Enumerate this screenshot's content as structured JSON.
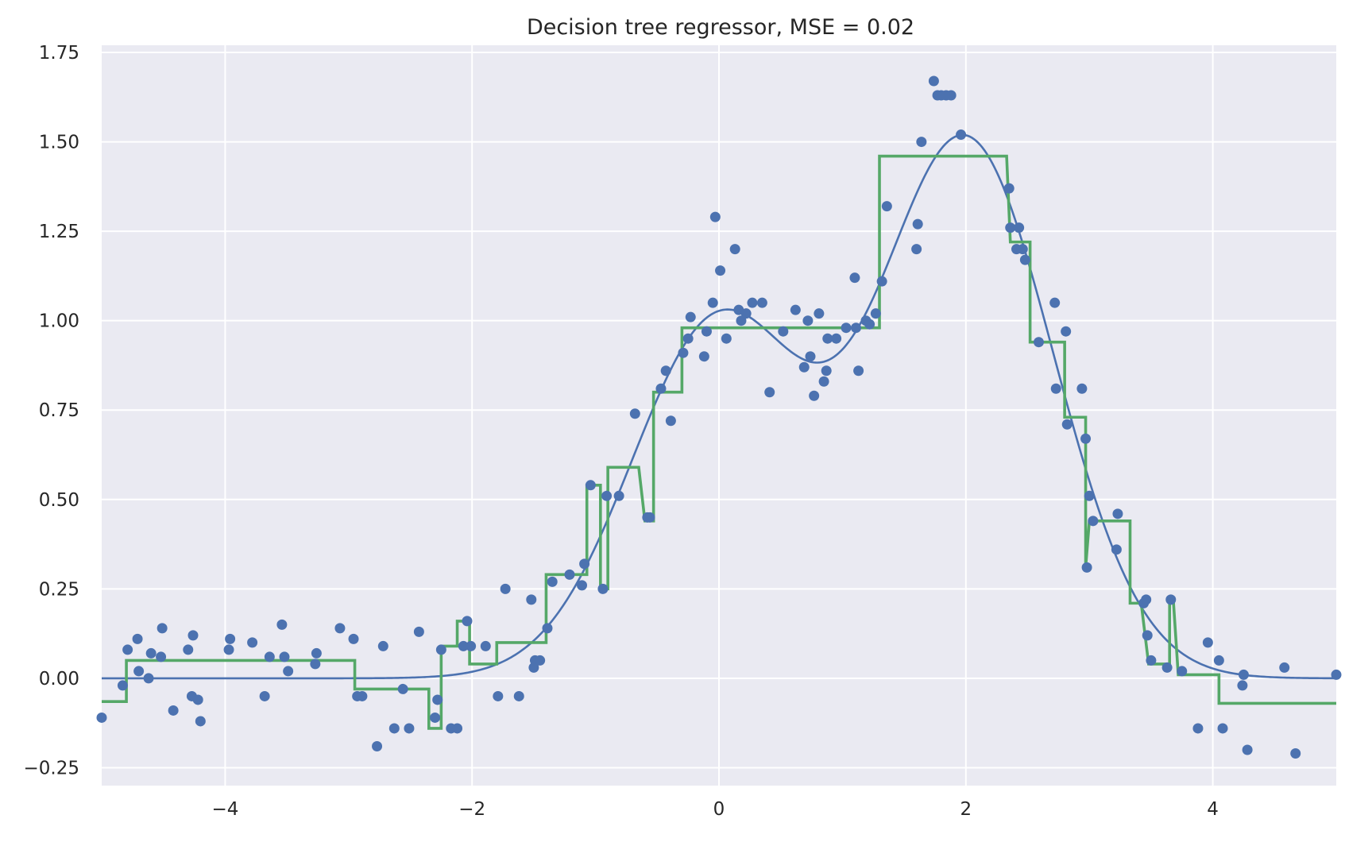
{
  "chart_data": {
    "type": "scatter",
    "title": "Decision tree regressor, MSE = 0.02",
    "xlabel": "",
    "ylabel": "",
    "xlim": [
      -5,
      5
    ],
    "ylim": [
      -0.3,
      1.77
    ],
    "grid": true,
    "background_color": "#eaeaf2",
    "grid_color": "#ffffff",
    "x_ticks": [
      -4,
      -2,
      0,
      2,
      4
    ],
    "x_tick_labels": [
      "−4",
      "−2",
      "0",
      "2",
      "4"
    ],
    "y_ticks": [
      -0.25,
      0,
      0.25,
      0.5,
      0.75,
      1.0,
      1.25,
      1.5,
      1.75
    ],
    "y_tick_labels": [
      "−0.25",
      "0.00",
      "0.25",
      "0.50",
      "0.75",
      "1.00",
      "1.25",
      "1.50",
      "1.75"
    ],
    "series": [
      {
        "kind": "scatter",
        "color": "#4c72b0",
        "points": [
          [
            -5.0,
            -0.11
          ],
          [
            -4.83,
            -0.02
          ],
          [
            -4.79,
            0.08
          ],
          [
            -4.71,
            0.11
          ],
          [
            -4.7,
            0.02
          ],
          [
            -4.62,
            0.0
          ],
          [
            -4.6,
            0.07
          ],
          [
            -4.52,
            0.06
          ],
          [
            -4.51,
            0.14
          ],
          [
            -4.42,
            -0.09
          ],
          [
            -4.3,
            0.08
          ],
          [
            -4.27,
            -0.05
          ],
          [
            -4.26,
            0.12
          ],
          [
            -4.22,
            -0.06
          ],
          [
            -4.2,
            -0.12
          ],
          [
            -3.97,
            0.08
          ],
          [
            -3.96,
            0.11
          ],
          [
            -3.78,
            0.1
          ],
          [
            -3.68,
            -0.05
          ],
          [
            -3.64,
            0.06
          ],
          [
            -3.54,
            0.15
          ],
          [
            -3.52,
            0.06
          ],
          [
            -3.49,
            0.02
          ],
          [
            -3.27,
            0.04
          ],
          [
            -3.26,
            0.07
          ],
          [
            -3.07,
            0.14
          ],
          [
            -2.96,
            0.11
          ],
          [
            -2.93,
            -0.05
          ],
          [
            -2.89,
            -0.05
          ],
          [
            -2.77,
            -0.19
          ],
          [
            -2.72,
            0.09
          ],
          [
            -2.63,
            -0.14
          ],
          [
            -2.56,
            -0.03
          ],
          [
            -2.51,
            -0.14
          ],
          [
            -2.43,
            0.13
          ],
          [
            -2.3,
            -0.11
          ],
          [
            -2.28,
            -0.06
          ],
          [
            -2.25,
            0.08
          ],
          [
            -2.17,
            -0.14
          ],
          [
            -2.12,
            -0.14
          ],
          [
            -2.07,
            0.09
          ],
          [
            -2.04,
            0.16
          ],
          [
            -2.01,
            0.09
          ],
          [
            -1.89,
            0.09
          ],
          [
            -1.79,
            -0.05
          ],
          [
            -1.73,
            0.25
          ],
          [
            -1.62,
            -0.05
          ],
          [
            -1.52,
            0.22
          ],
          [
            -1.5,
            0.03
          ],
          [
            -1.49,
            0.05
          ],
          [
            -1.45,
            0.05
          ],
          [
            -1.39,
            0.14
          ],
          [
            -1.35,
            0.27
          ],
          [
            -1.21,
            0.29
          ],
          [
            -1.11,
            0.26
          ],
          [
            -1.09,
            0.32
          ],
          [
            -1.04,
            0.54
          ],
          [
            -0.94,
            0.25
          ],
          [
            -0.91,
            0.51
          ],
          [
            -0.81,
            0.51
          ],
          [
            -0.68,
            0.74
          ],
          [
            -0.58,
            0.45
          ],
          [
            -0.56,
            0.45
          ],
          [
            -0.47,
            0.81
          ],
          [
            -0.43,
            0.86
          ],
          [
            -0.39,
            0.72
          ],
          [
            -0.29,
            0.91
          ],
          [
            -0.25,
            0.95
          ],
          [
            -0.23,
            1.01
          ],
          [
            -0.12,
            0.9
          ],
          [
            -0.1,
            0.97
          ],
          [
            -0.05,
            1.05
          ],
          [
            -0.03,
            1.29
          ],
          [
            0.01,
            1.14
          ],
          [
            0.06,
            0.95
          ],
          [
            0.13,
            1.2
          ],
          [
            0.16,
            1.03
          ],
          [
            0.18,
            1.0
          ],
          [
            0.22,
            1.02
          ],
          [
            0.27,
            1.05
          ],
          [
            0.35,
            1.05
          ],
          [
            0.41,
            0.8
          ],
          [
            0.52,
            0.97
          ],
          [
            0.62,
            1.03
          ],
          [
            0.69,
            0.87
          ],
          [
            0.72,
            1.0
          ],
          [
            0.74,
            0.9
          ],
          [
            0.77,
            0.79
          ],
          [
            0.81,
            1.02
          ],
          [
            0.85,
            0.83
          ],
          [
            0.87,
            0.86
          ],
          [
            0.88,
            0.95
          ],
          [
            0.95,
            0.95
          ],
          [
            1.03,
            0.98
          ],
          [
            1.1,
            1.12
          ],
          [
            1.11,
            0.98
          ],
          [
            1.13,
            0.86
          ],
          [
            1.19,
            1.0
          ],
          [
            1.22,
            0.99
          ],
          [
            1.27,
            1.02
          ],
          [
            1.32,
            1.11
          ],
          [
            1.36,
            1.32
          ],
          [
            1.6,
            1.2
          ],
          [
            1.61,
            1.27
          ],
          [
            1.64,
            1.5
          ],
          [
            1.74,
            1.67
          ],
          [
            1.77,
            1.63
          ],
          [
            1.8,
            1.63
          ],
          [
            1.84,
            1.63
          ],
          [
            1.88,
            1.63
          ],
          [
            1.96,
            1.52
          ],
          [
            2.35,
            1.37
          ],
          [
            2.36,
            1.26
          ],
          [
            2.41,
            1.2
          ],
          [
            2.43,
            1.26
          ],
          [
            2.46,
            1.2
          ],
          [
            2.48,
            1.17
          ],
          [
            2.59,
            0.94
          ],
          [
            2.72,
            1.05
          ],
          [
            2.73,
            0.81
          ],
          [
            2.81,
            0.97
          ],
          [
            2.82,
            0.71
          ],
          [
            2.94,
            0.81
          ],
          [
            2.97,
            0.67
          ],
          [
            2.98,
            0.31
          ],
          [
            3.0,
            0.51
          ],
          [
            3.03,
            0.44
          ],
          [
            3.23,
            0.46
          ],
          [
            3.22,
            0.36
          ],
          [
            3.44,
            0.21
          ],
          [
            3.46,
            0.22
          ],
          [
            3.47,
            0.12
          ],
          [
            3.5,
            0.05
          ],
          [
            3.63,
            0.03
          ],
          [
            3.66,
            0.22
          ],
          [
            3.75,
            0.02
          ],
          [
            3.88,
            -0.14
          ],
          [
            3.96,
            0.1
          ],
          [
            4.05,
            0.05
          ],
          [
            4.08,
            -0.14
          ],
          [
            4.24,
            -0.02
          ],
          [
            4.25,
            0.01
          ],
          [
            4.28,
            -0.2
          ],
          [
            4.58,
            0.03
          ],
          [
            4.67,
            -0.21
          ],
          [
            5.0,
            0.01
          ]
        ]
      },
      {
        "kind": "line",
        "color": "#4c72b0",
        "formula": "exp(-x^2) + 1.5*exp(-(x-2)^2)"
      },
      {
        "kind": "step",
        "color": "#55a868",
        "points": [
          [
            -5.0,
            -0.065
          ],
          [
            -4.8,
            -0.065
          ],
          [
            -4.8,
            0.05
          ],
          [
            -2.95,
            0.05
          ],
          [
            -2.95,
            -0.03
          ],
          [
            -2.35,
            -0.03
          ],
          [
            -2.35,
            -0.14
          ],
          [
            -2.25,
            -0.14
          ],
          [
            -2.25,
            0.09
          ],
          [
            -2.12,
            0.09
          ],
          [
            -2.12,
            0.16
          ],
          [
            -2.02,
            0.16
          ],
          [
            -2.02,
            0.04
          ],
          [
            -1.8,
            0.04
          ],
          [
            -1.8,
            0.1
          ],
          [
            -1.4,
            0.1
          ],
          [
            -1.4,
            0.29
          ],
          [
            -1.07,
            0.29
          ],
          [
            -1.07,
            0.54
          ],
          [
            -0.96,
            0.54
          ],
          [
            -0.96,
            0.25
          ],
          [
            -0.9,
            0.25
          ],
          [
            -0.9,
            0.59
          ],
          [
            -0.65,
            0.59
          ],
          [
            -0.6,
            0.44
          ],
          [
            -0.53,
            0.44
          ],
          [
            -0.53,
            0.8
          ],
          [
            -0.3,
            0.8
          ],
          [
            -0.3,
            0.98
          ],
          [
            1.3,
            0.98
          ],
          [
            1.3,
            1.46
          ],
          [
            2.33,
            1.46
          ],
          [
            2.36,
            1.22
          ],
          [
            2.52,
            1.22
          ],
          [
            2.52,
            0.94
          ],
          [
            2.8,
            0.94
          ],
          [
            2.8,
            0.73
          ],
          [
            2.97,
            0.73
          ],
          [
            2.97,
            0.31
          ],
          [
            3.0,
            0.44
          ],
          [
            3.33,
            0.44
          ],
          [
            3.33,
            0.21
          ],
          [
            3.42,
            0.21
          ],
          [
            3.48,
            0.04
          ],
          [
            3.65,
            0.04
          ],
          [
            3.65,
            0.22
          ],
          [
            3.68,
            0.22
          ],
          [
            3.72,
            0.01
          ],
          [
            4.05,
            0.01
          ],
          [
            4.05,
            -0.07
          ],
          [
            5.0,
            -0.07
          ]
        ]
      }
    ]
  }
}
